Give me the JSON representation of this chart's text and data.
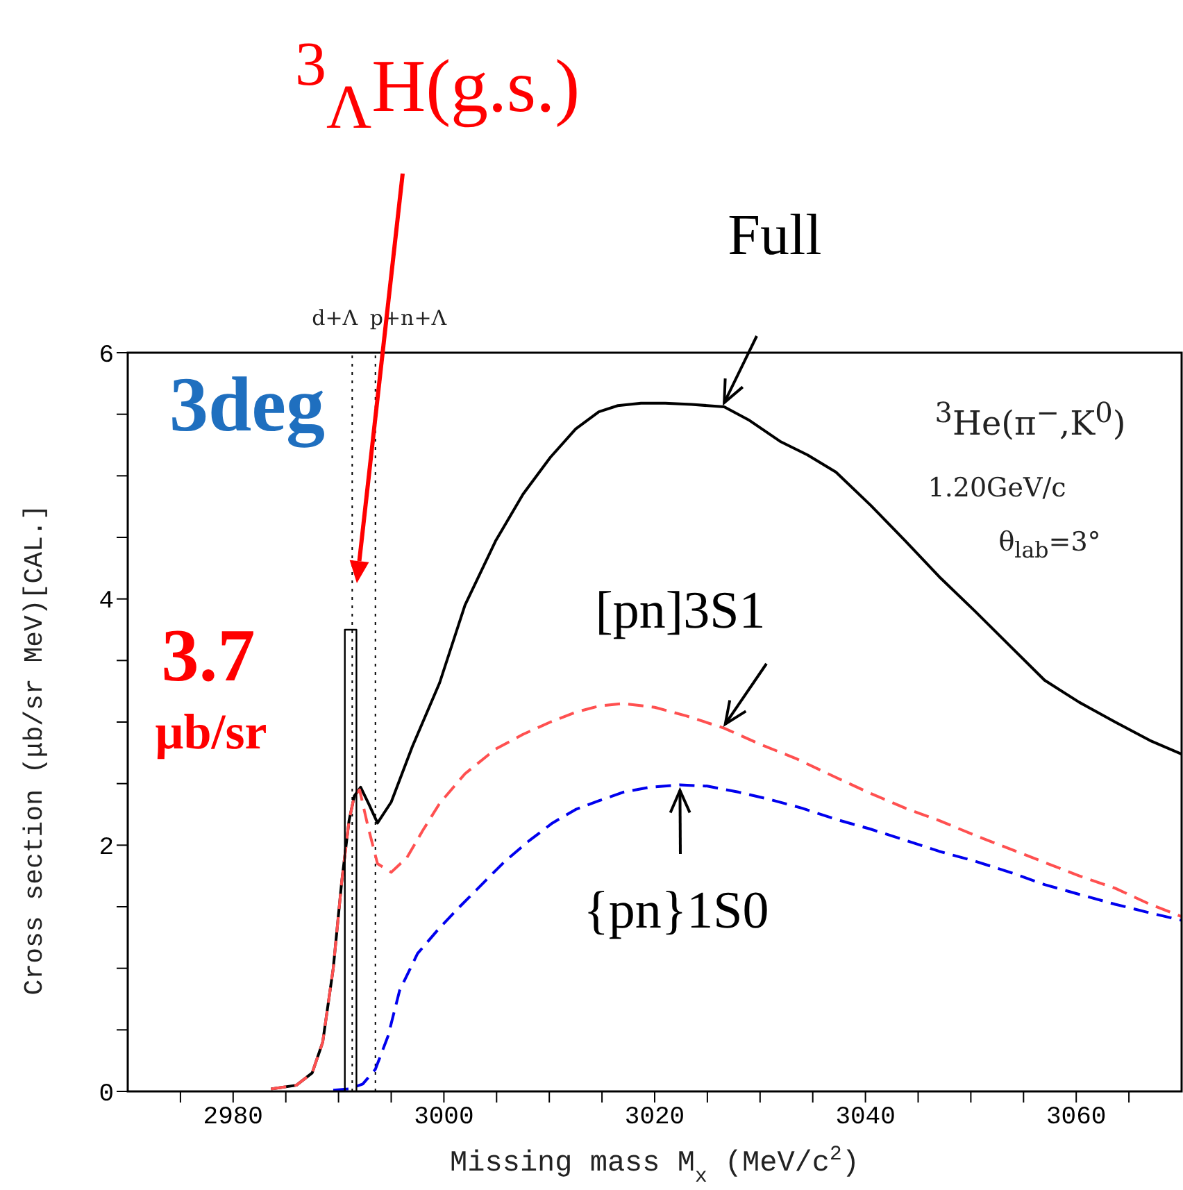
{
  "chart_data": {
    "type": "line",
    "xlabel": "Missing mass M$_{x}$ (MeV/c$^{2}$)",
    "ylabel": "Cross section (μb/sr MeV)[CAL.]",
    "xlim": [
      2970,
      3070
    ],
    "xticks": [
      {
        "value": 2975,
        "label": null
      },
      2980,
      {
        "value": 2985,
        "label": null
      },
      3000,
      {
        "value": 2990,
        "label": null
      },
      {
        "value": 2995,
        "label": null
      },
      {
        "value": 3005,
        "label": null
      },
      {
        "value": 3010,
        "label": null
      },
      {
        "value": 3015,
        "label": null
      },
      3020,
      {
        "value": 3025,
        "label": null
      },
      {
        "value": 3030,
        "label": null
      },
      {
        "value": 3035,
        "label": null
      },
      3040,
      {
        "value": 3045,
        "label": null
      },
      {
        "value": 3050,
        "label": null
      },
      {
        "value": 3055,
        "label": null
      },
      3060,
      {
        "value": 3065,
        "label": null
      }
    ],
    "ylim": [
      0,
      6
    ],
    "yticks": [
      0,
      {
        "value": 0.5,
        "label": null
      },
      {
        "value": 1,
        "label": null
      },
      {
        "value": 1.5,
        "label": null
      },
      2,
      {
        "value": 2.5,
        "label": null
      },
      {
        "value": 3,
        "label": null
      },
      {
        "value": 3.5,
        "label": null
      },
      4,
      {
        "value": 4.5,
        "label": null
      },
      {
        "value": 5,
        "label": null
      },
      {
        "value": 5.5,
        "label": null
      },
      6
    ],
    "marker": "none",
    "series": [
      {
        "color": "#000000",
        "line_style": "solid",
        "x": [
          2983.6,
          2986,
          2987.5,
          2988.5,
          2989.5,
          2990.3,
          2991,
          2991.5,
          2992.1,
          2992.9,
          2993.7,
          2995,
          2997,
          2999.6,
          3002,
          3004.9,
          3007.5,
          3010.1,
          3012.5,
          3014.7,
          3016.5,
          3018.7,
          3021,
          3023.5,
          3026.6,
          3029,
          3031.9,
          3034.5,
          3037.2,
          3040.5,
          3043.8,
          3047,
          3050.4,
          3053.7,
          3057,
          3060.3,
          3063.7,
          3067,
          3070
        ],
        "values": [
          0.02,
          0.05,
          0.15,
          0.4,
          1.0,
          1.7,
          2.2,
          2.4,
          2.47,
          2.33,
          2.18,
          2.35,
          2.8,
          3.32,
          3.95,
          4.47,
          4.85,
          5.15,
          5.38,
          5.52,
          5.57,
          5.59,
          5.59,
          5.58,
          5.56,
          5.45,
          5.28,
          5.17,
          5.03,
          4.76,
          4.47,
          4.18,
          3.9,
          3.62,
          3.34,
          3.16,
          3.0,
          2.85,
          2.74
        ]
      },
      {
        "color": "#ff5050",
        "line_style": "dashed",
        "x": [
          2983.6,
          2986,
          2987.5,
          2988.5,
          2989.5,
          2990.3,
          2991,
          2991.5,
          2992,
          2992.8,
          2993.7,
          2995,
          2996.5,
          2998,
          2999.6,
          3002,
          3004.9,
          3007.5,
          3010.1,
          3012.5,
          3014.7,
          3017,
          3020,
          3023,
          3026.6,
          3030,
          3033.5,
          3037.2,
          3040.5,
          3043.8,
          3047,
          3050.4,
          3053.7,
          3057,
          3060.3,
          3063.7,
          3067,
          3070
        ],
        "values": [
          0.02,
          0.05,
          0.15,
          0.4,
          1.0,
          1.7,
          2.2,
          2.4,
          2.45,
          2.15,
          1.85,
          1.78,
          1.9,
          2.12,
          2.34,
          2.58,
          2.78,
          2.9,
          3.0,
          3.08,
          3.13,
          3.15,
          3.12,
          3.05,
          2.95,
          2.82,
          2.7,
          2.55,
          2.42,
          2.3,
          2.2,
          2.08,
          1.97,
          1.86,
          1.75,
          1.65,
          1.52,
          1.42
        ]
      },
      {
        "color": "#0000ee",
        "line_style": "dashed",
        "x": [
          2989.5,
          2991,
          2992.3,
          2993.5,
          2994.7,
          2995.8,
          2997.5,
          2999.5,
          3001.5,
          3003.7,
          3005.8,
          3008,
          3010.3,
          3012.5,
          3014.7,
          3017,
          3019.5,
          3022.4,
          3025,
          3028,
          3031,
          3034,
          3037.2,
          3040.5,
          3043.8,
          3047,
          3050.4,
          3053.7,
          3057,
          3060.3,
          3063.7,
          3067,
          3070
        ],
        "values": [
          0.01,
          0.02,
          0.06,
          0.18,
          0.45,
          0.82,
          1.12,
          1.32,
          1.5,
          1.69,
          1.87,
          2.03,
          2.18,
          2.29,
          2.36,
          2.43,
          2.47,
          2.49,
          2.48,
          2.43,
          2.37,
          2.3,
          2.21,
          2.13,
          2.04,
          1.95,
          1.87,
          1.78,
          1.68,
          1.6,
          1.52,
          1.45,
          1.39
        ]
      },
      {
        "color": "#000000",
        "line_style": "solid",
        "x": [
          2990.6,
          2990.6,
          2991.7,
          2991.7
        ],
        "values": [
          0,
          3.75,
          3.75,
          0
        ]
      }
    ],
    "ref_lines": [
      {
        "axis": "x",
        "value": 2991.3,
        "label": "d+Λ",
        "line_style": "dotted"
      },
      {
        "axis": "x",
        "value": 2993.5,
        "label": "p+n+Λ",
        "line_style": "dotted"
      }
    ],
    "annotations": [
      "$^{3}$$_{Λ}$H(g.s.)",
      "3deg",
      "3.7",
      "μb/sr",
      {
        "text": "Full",
        "x": 3026.6,
        "y": 5.56
      },
      {
        "text": "[pn]3S1",
        "x": 3026.7,
        "y": 2.95
      },
      {
        "text": "{pn}1S0",
        "x": 3022.4,
        "y": 2.49
      },
      "$^{3}$He(π$^{−}$,K$^{0}$)",
      "1.20GeV/c",
      "θ$_{lab}$=3°"
    ]
  }
}
